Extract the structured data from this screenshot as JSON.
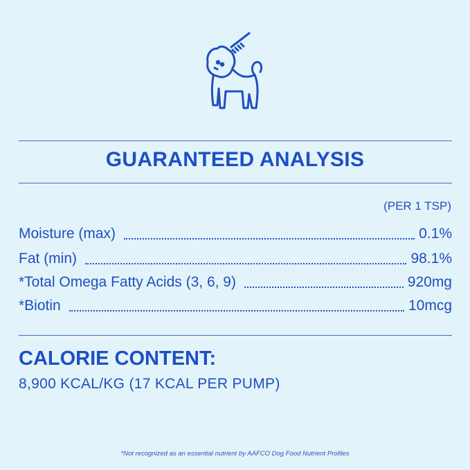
{
  "icon": "dog-with-brush-icon",
  "colors": {
    "background": "#e3f3fa",
    "accent": "#1d4fc4"
  },
  "title": "GUARANTEED ANALYSIS",
  "per": "(PER 1 TSP)",
  "rows": [
    {
      "label": "Moisture (max)",
      "value": "0.1%"
    },
    {
      "label": "Fat (min)",
      "value": "98.1%"
    },
    {
      "label": "*Total Omega Fatty Acids (3, 6, 9)",
      "value": "920mg"
    },
    {
      "label": "*Biotin",
      "value": "10mcg"
    }
  ],
  "calorie": {
    "heading": "CALORIE CONTENT:",
    "value": "8,900 KCAL/KG (17 KCAL PER PUMP)"
  },
  "footnote": "*Not recognized as an essential nutrient by AAFCO Dog Food Nutrient Profiles"
}
